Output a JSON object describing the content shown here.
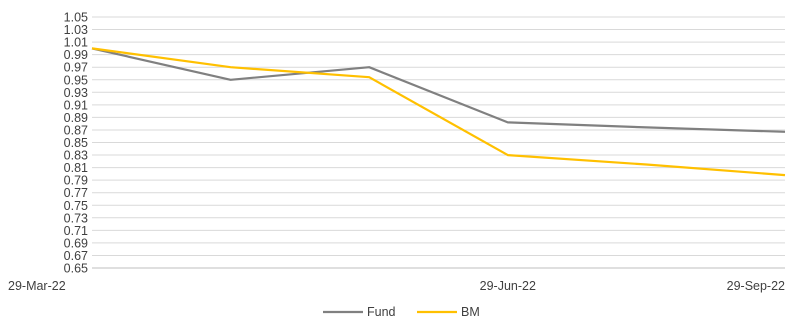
{
  "chart_data": {
    "type": "line",
    "title": "",
    "xlabel": "",
    "ylabel": "",
    "x": [
      "29-Mar-22",
      "",
      "",
      "29-Jun-22",
      "",
      "29-Sep-22"
    ],
    "x_tick_labels": [
      "29-Mar-22",
      "29-Jun-22",
      "29-Sep-22"
    ],
    "ylim": [
      0.65,
      1.05
    ],
    "y_ticks": [
      "0.65",
      "0.67",
      "0.69",
      "0.71",
      "0.73",
      "0.75",
      "0.77",
      "0.79",
      "0.81",
      "0.83",
      "0.85",
      "0.87",
      "0.89",
      "0.91",
      "0.93",
      "0.95",
      "0.97",
      "0.99",
      "1.01",
      "1.03",
      "1.05"
    ],
    "grid": true,
    "legend_position": "bottom",
    "series": [
      {
        "name": "Fund",
        "color": "#808080",
        "values": [
          1.0,
          0.95,
          0.97,
          0.882,
          0.874,
          0.867
        ]
      },
      {
        "name": "BM",
        "color": "#FFC000",
        "values": [
          1.0,
          0.97,
          0.954,
          0.83,
          0.815,
          0.798
        ]
      }
    ]
  }
}
